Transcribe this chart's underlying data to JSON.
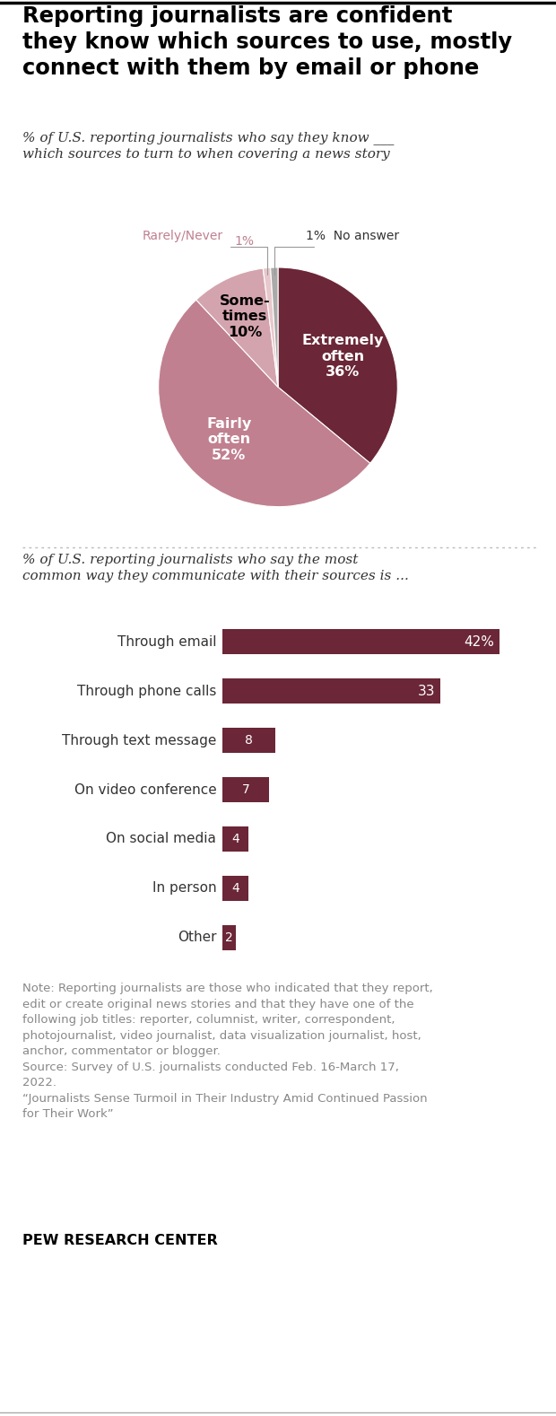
{
  "title": "Reporting journalists are confident\nthey know which sources to use, mostly\nconnect with them by email or phone",
  "pie_subtitle": "% of U.S. reporting journalists who say they know ___\nwhich sources to turn to when covering a news story",
  "bar_subtitle": "% of U.S. reporting journalists who say the most\ncommon way they communicate with their sources is ...",
  "pie_values": [
    36,
    52,
    10,
    1,
    1
  ],
  "pie_colors": [
    "#6b2737",
    "#c08090",
    "#d4a4ae",
    "#e8c8cc",
    "#aaaaaa"
  ],
  "bar_categories": [
    "Through email",
    "Through phone calls",
    "Through text message",
    "On video conference",
    "On social media",
    "In person",
    "Other"
  ],
  "bar_values": [
    42,
    33,
    8,
    7,
    4,
    4,
    2
  ],
  "bar_color": "#6b2737",
  "bar_label_pct": [
    "42%",
    "33",
    "8",
    "7",
    "4",
    "4",
    "2"
  ],
  "note_text": "Note: Reporting journalists are those who indicated that they report,\nedit or create original news stories and that they have one of the\nfollowing job titles: reporter, columnist, writer, correspondent,\nphotojournalist, video journalist, data visualization journalist, host,\nanchor, commentator or blogger.\nSource: Survey of U.S. journalists conducted Feb. 16-March 17,\n2022.\n“Journalists Sense Turmoil in Their Industry Amid Continued Passion\nfor Their Work”",
  "pew_label": "PEW RESEARCH CENTER",
  "bg_color": "#ffffff",
  "text_color": "#333333",
  "gray_color": "#888888",
  "rarely_color": "#c08090"
}
